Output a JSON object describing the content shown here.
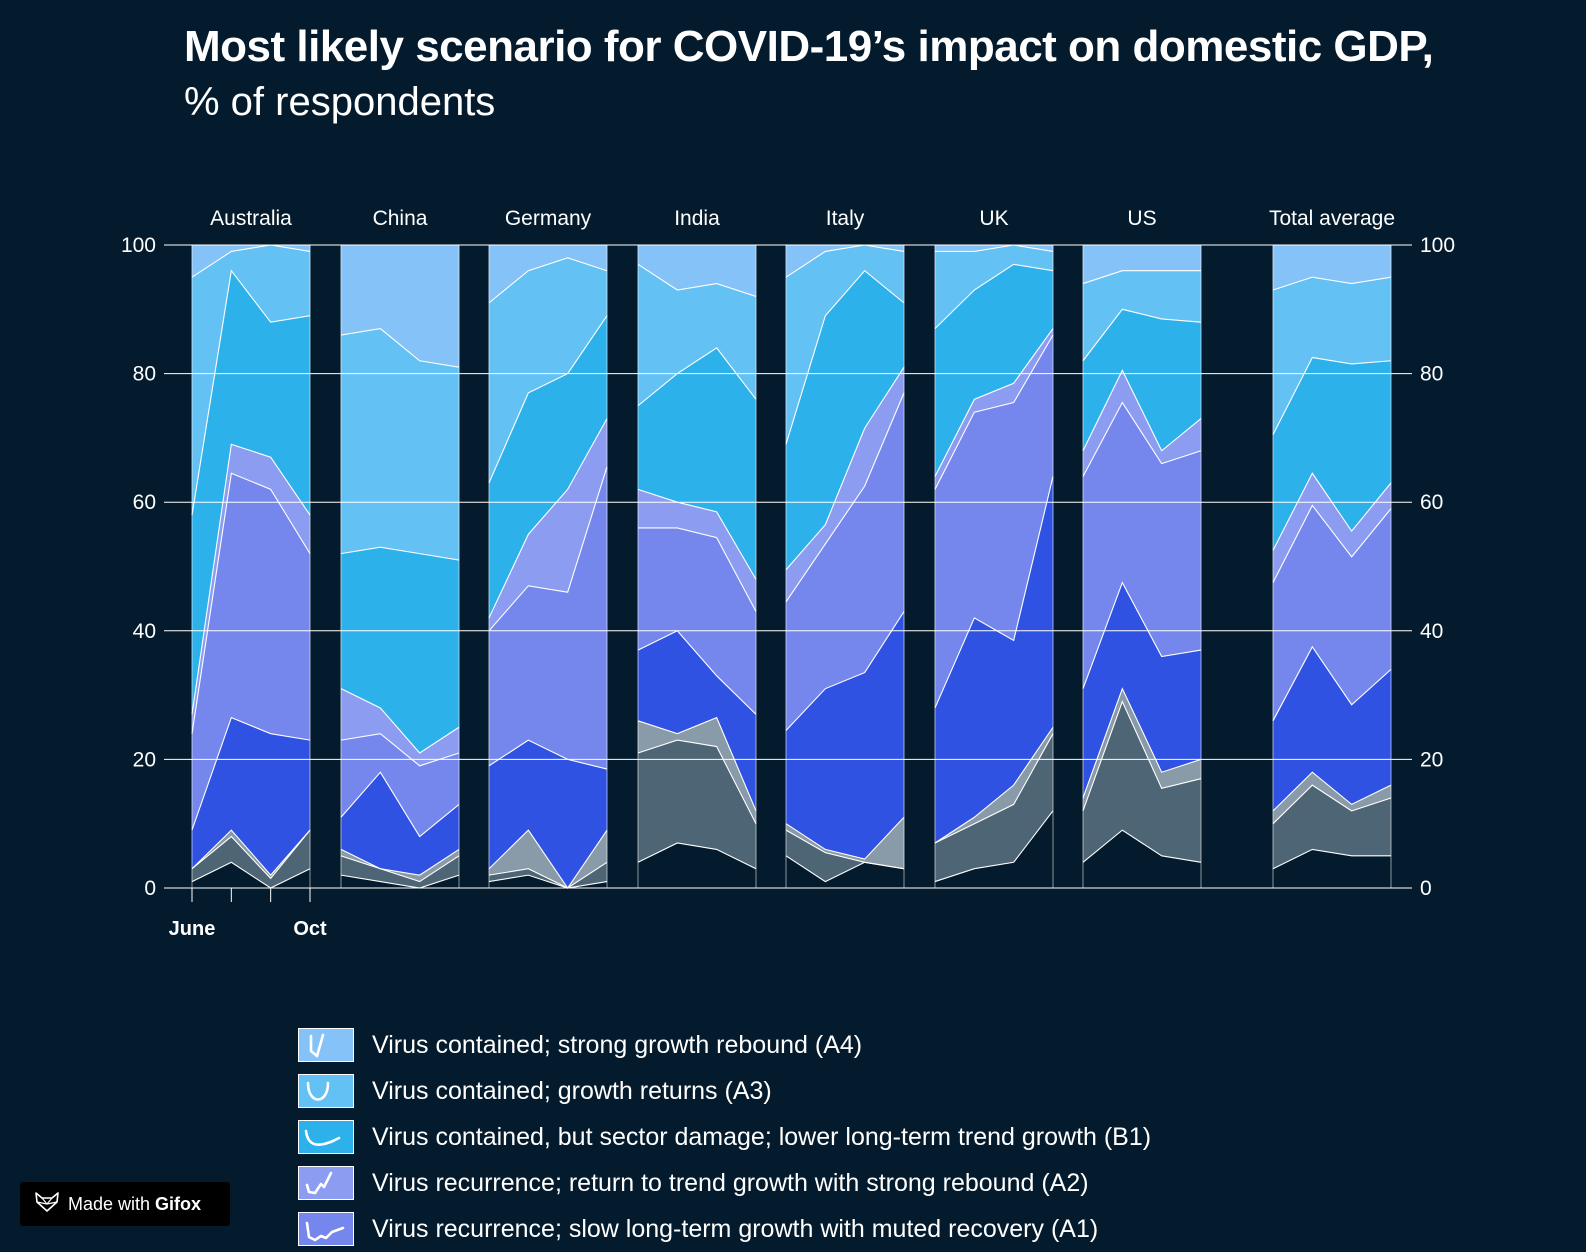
{
  "header": {
    "title": "Most likely scenario for COVID-19’s impact on domestic GDP,",
    "subtitle": "% of respondents"
  },
  "colors": {
    "background": "#041b2d",
    "A4": "#85c2f7",
    "A3": "#63c1f4",
    "B1": "#2db1ea",
    "A2": "#8c9cf1",
    "A1": "#7587ec",
    "B2": "#3052e2",
    "lower_grey": "#899aa8",
    "lower_slate": "#4e6575",
    "lower_base": "#041b2d"
  },
  "legend": [
    {
      "key": "A4",
      "label": "Virus contained; strong growth rebound (A4)",
      "icon": "v-shape-curve-icon"
    },
    {
      "key": "A3",
      "label": "Virus contained; growth returns (A3)",
      "icon": "u-shape-curve-icon"
    },
    {
      "key": "B1",
      "label": "Virus contained, but sector damage; lower long-term trend growth (B1)",
      "icon": "swoosh-curve-icon"
    },
    {
      "key": "A2",
      "label": "Virus recurrence; return to trend growth with strong rebound (A2)",
      "icon": "w-rebound-curve-icon"
    },
    {
      "key": "A1",
      "label": "Virus recurrence; slow long-term growth with muted recovery (A1)",
      "icon": "w-muted-curve-icon"
    }
  ],
  "badge": {
    "prefix": "Made with",
    "brand": "Gifox",
    "icon": "fox-logo-icon"
  },
  "chart_data": {
    "type": "area",
    "title": "Most likely scenario for COVID-19’s impact on domestic GDP,",
    "subtitle": "% of respondents",
    "ylim": [
      0,
      100
    ],
    "yticks": [
      0,
      20,
      40,
      60,
      80,
      100
    ],
    "ytick_labels": [
      "0",
      "20",
      "40",
      "60",
      "80",
      "100"
    ],
    "x_tick_labels": [
      "June",
      "Oct"
    ],
    "grid": true,
    "stack_order_bottom_to_top": [
      "L0",
      "L1",
      "L2",
      "B2",
      "A1",
      "A2",
      "B1",
      "A3",
      "A4"
    ],
    "panels": [
      {
        "name": "Australia",
        "boundaries": [
          [
            1,
            4,
            0,
            3
          ],
          [
            3,
            8,
            1.5,
            9
          ],
          [
            3,
            9,
            2,
            9
          ],
          [
            9,
            26.5,
            24,
            23
          ],
          [
            24,
            64.5,
            62,
            52
          ],
          [
            27,
            69,
            67,
            58
          ],
          [
            58,
            96,
            88,
            89
          ],
          [
            95,
            99,
            100,
            99
          ]
        ]
      },
      {
        "name": "China",
        "boundaries": [
          [
            2,
            1,
            0,
            2
          ],
          [
            5,
            3,
            1,
            5
          ],
          [
            6,
            3,
            2,
            6
          ],
          [
            11,
            18,
            8,
            13
          ],
          [
            23,
            24,
            19,
            21
          ],
          [
            31,
            28,
            21,
            25
          ],
          [
            52,
            53,
            52,
            51
          ],
          [
            86,
            87,
            82,
            81
          ]
        ]
      },
      {
        "name": "Germany",
        "boundaries": [
          [
            1,
            2,
            0,
            1
          ],
          [
            2,
            3,
            0,
            4
          ],
          [
            3,
            9,
            0,
            9
          ],
          [
            19,
            23,
            20,
            18.5
          ],
          [
            40,
            47,
            46,
            65.5
          ],
          [
            42,
            55,
            62,
            73
          ],
          [
            63,
            77,
            80,
            89
          ],
          [
            91,
            96,
            98,
            96
          ]
        ]
      },
      {
        "name": "India",
        "boundaries": [
          [
            4,
            7,
            6,
            3
          ],
          [
            21,
            23,
            22,
            10
          ],
          [
            26,
            24,
            26.5,
            12
          ],
          [
            37,
            40,
            33,
            27
          ],
          [
            56,
            56,
            54.5,
            43
          ],
          [
            62,
            60,
            58.5,
            48
          ],
          [
            75,
            80,
            84,
            76
          ],
          [
            97,
            93,
            94,
            92
          ]
        ]
      },
      {
        "name": "Italy",
        "boundaries": [
          [
            5,
            1,
            4,
            3
          ],
          [
            9,
            5.5,
            4,
            3
          ],
          [
            10,
            6,
            4.5,
            11
          ],
          [
            24.5,
            31,
            33.5,
            43
          ],
          [
            44.5,
            53.5,
            62.5,
            77
          ],
          [
            49.5,
            56.5,
            71.5,
            81
          ],
          [
            69,
            89,
            96,
            91
          ],
          [
            95,
            99,
            100,
            99
          ]
        ]
      },
      {
        "name": "UK",
        "boundaries": [
          [
            1,
            3,
            4,
            12
          ],
          [
            7,
            10,
            13,
            24
          ],
          [
            7,
            11,
            16,
            25
          ],
          [
            28,
            42,
            38.5,
            64
          ],
          [
            62,
            74,
            75.5,
            86
          ],
          [
            64,
            76,
            78.5,
            87
          ],
          [
            87,
            93,
            97,
            96
          ],
          [
            99,
            99,
            100,
            99
          ]
        ]
      },
      {
        "name": "US",
        "boundaries": [
          [
            4,
            9,
            5,
            4
          ],
          [
            12,
            29,
            15.5,
            17
          ],
          [
            14,
            31,
            18,
            20
          ],
          [
            31,
            47.5,
            36,
            37
          ],
          [
            64,
            75.5,
            66,
            68
          ],
          [
            68,
            80.5,
            68,
            73
          ],
          [
            82,
            90,
            88.5,
            88
          ],
          [
            94,
            96,
            96,
            96
          ]
        ]
      },
      {
        "name": "Total average",
        "boundaries": [
          [
            3,
            6,
            5,
            5
          ],
          [
            10,
            16,
            12,
            14
          ],
          [
            12,
            18,
            13,
            16
          ],
          [
            26,
            37.5,
            28.5,
            34
          ],
          [
            47.5,
            59.5,
            51.5,
            59
          ],
          [
            52.5,
            64.5,
            55.5,
            63
          ],
          [
            70.5,
            82.5,
            81.5,
            82
          ],
          [
            93,
            95,
            94,
            95
          ]
        ]
      }
    ]
  }
}
